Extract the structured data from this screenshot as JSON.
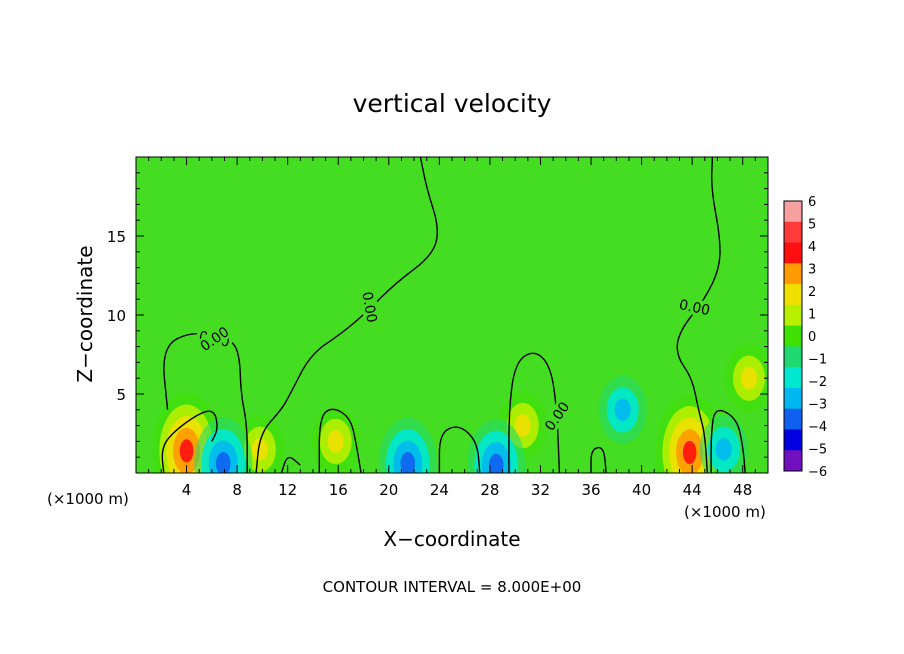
{
  "chart_data": {
    "type": "heatmap",
    "title": "vertical velocity",
    "xlabel": "X−coordinate",
    "ylabel": "Z−coordinate",
    "x_unit_left": "(×1000 m)",
    "x_unit_right": "(×1000 m)",
    "footer": "CONTOUR INTERVAL = 8.000E+00",
    "xlim": [
      0,
      50
    ],
    "ylim": [
      0,
      20
    ],
    "x_ticks": [
      4,
      8,
      12,
      16,
      20,
      24,
      28,
      32,
      36,
      40,
      44,
      48
    ],
    "x_tick_labels": [
      "4",
      "8",
      "12",
      "16",
      "20",
      "24",
      "28",
      "32",
      "36",
      "40",
      "44",
      "48"
    ],
    "y_ticks": [
      5,
      10,
      15
    ],
    "y_tick_labels": [
      "5",
      "10",
      "15"
    ],
    "colorbar": {
      "levels": [
        6,
        5,
        4,
        3,
        2,
        1,
        0,
        -1,
        -2,
        -3,
        -4,
        -5,
        -6
      ],
      "labels": [
        "6",
        "5",
        "4",
        "3",
        "2",
        "1",
        "0",
        "−1",
        "−2",
        "−3",
        "−4",
        "−5",
        "−6"
      ],
      "colors": [
        "#f6a0a0",
        "#ff3a3a",
        "#ff1010",
        "#ff9a00",
        "#f0e000",
        "#b8f000",
        "#40e000",
        "#20d870",
        "#00e8d0",
        "#00b8f0",
        "#1060f0",
        "#0000e0",
        "#7010c0"
      ]
    },
    "background_value": 0.3,
    "background_color": "#44dd22",
    "features": [
      {
        "x": 4.0,
        "z": 1.4,
        "value": 4.0
      },
      {
        "x": 43.8,
        "z": 1.3,
        "value": 3.5
      },
      {
        "x": 15.8,
        "z": 2.0,
        "value": 1.5
      },
      {
        "x": 30.6,
        "z": 3.0,
        "value": 1.5
      },
      {
        "x": 9.8,
        "z": 1.5,
        "value": 1.2
      },
      {
        "x": 6.9,
        "z": 0.6,
        "value": -3.0
      },
      {
        "x": 28.5,
        "z": 0.5,
        "value": -3.0
      },
      {
        "x": 21.5,
        "z": 0.6,
        "value": -2.5
      },
      {
        "x": 46.5,
        "z": 1.5,
        "value": -2.0
      },
      {
        "x": 38.5,
        "z": 4.0,
        "value": -1.2
      },
      {
        "x": 48.5,
        "z": 6.0,
        "value": 1.2
      }
    ],
    "contours": [
      {
        "level": 0.0,
        "label": "0.00",
        "label_at": [
          6.2,
          8.5
        ],
        "points": [
          [
            2.2,
            0
          ],
          [
            2.0,
            1.5
          ],
          [
            2.8,
            2.5
          ],
          [
            5.0,
            3.8
          ],
          [
            6.2,
            4.0
          ],
          [
            6.5,
            2.8
          ],
          [
            6.0,
            2.0
          ]
        ]
      },
      {
        "level": 0.0,
        "label": "0.00",
        "label_at": [
          6.2,
          8.5
        ],
        "points": [
          [
            2.5,
            4.0
          ],
          [
            2.0,
            8.0
          ],
          [
            4.5,
            9.0
          ],
          [
            7.5,
            8.5
          ],
          [
            8.2,
            7.5
          ],
          [
            8.3,
            5.0
          ],
          [
            8.8,
            3.0
          ],
          [
            8.8,
            0
          ]
        ]
      },
      {
        "level": 0.0,
        "label": "0.00",
        "label_at": [
          18.5,
          10.5
        ],
        "points": [
          [
            9.5,
            0
          ],
          [
            9.8,
            2.5
          ],
          [
            11.5,
            4.0
          ],
          [
            12.2,
            5.0
          ],
          [
            13.8,
            7.5
          ],
          [
            16.2,
            8.8
          ],
          [
            18.0,
            10.0
          ],
          [
            20.5,
            12.0
          ],
          [
            23.5,
            13.8
          ],
          [
            24.0,
            15.5
          ],
          [
            23.0,
            18.0
          ],
          [
            22.5,
            20.0
          ]
        ]
      },
      {
        "level": 0.0,
        "label": "0.00",
        "label_at": [
          33.3,
          3.6
        ],
        "points": [
          [
            29.5,
            0
          ],
          [
            29.5,
            4.0
          ],
          [
            30.0,
            7.0
          ],
          [
            31.5,
            7.8
          ],
          [
            32.8,
            6.8
          ],
          [
            33.3,
            4.0
          ],
          [
            33.5,
            0
          ]
        ]
      },
      {
        "level": 0.0,
        "label": "0.00",
        "label_at": [
          44.2,
          10.5
        ],
        "points": [
          [
            45.2,
            0
          ],
          [
            45.0,
            2.5
          ],
          [
            44.5,
            4.0
          ],
          [
            44.0,
            6.0
          ],
          [
            42.7,
            7.5
          ],
          [
            43.0,
            9.0
          ],
          [
            45.0,
            11.0
          ],
          [
            46.2,
            13.0
          ],
          [
            46.2,
            15.0
          ],
          [
            45.5,
            18.0
          ],
          [
            45.6,
            20.0
          ]
        ]
      },
      {
        "level": 0.0,
        "label": "",
        "label_at": null,
        "points": [
          [
            11.5,
            0
          ],
          [
            12.0,
            1.2
          ],
          [
            13.0,
            0.5
          ]
        ]
      },
      {
        "level": 0.0,
        "label": "",
        "label_at": null,
        "points": [
          [
            14.5,
            0
          ],
          [
            14.5,
            3.5
          ],
          [
            15.5,
            4.2
          ],
          [
            17.0,
            3.5
          ],
          [
            17.5,
            1.5
          ],
          [
            17.8,
            0
          ]
        ]
      },
      {
        "level": 0.0,
        "label": "",
        "label_at": null,
        "points": [
          [
            24.0,
            0
          ],
          [
            24.0,
            2.5
          ],
          [
            25.5,
            3.1
          ],
          [
            27.0,
            2.0
          ],
          [
            27.2,
            0
          ]
        ]
      },
      {
        "level": 0.0,
        "label": "",
        "label_at": null,
        "points": [
          [
            36.0,
            0
          ],
          [
            36.0,
            1.5
          ],
          [
            37.0,
            1.7
          ],
          [
            37.2,
            0
          ]
        ]
      },
      {
        "level": 0.0,
        "label": "",
        "label_at": null,
        "points": [
          [
            45.5,
            0
          ],
          [
            45.5,
            2.5
          ],
          [
            45.8,
            4.2
          ],
          [
            47.5,
            3.5
          ],
          [
            48.0,
            1.8
          ],
          [
            48.2,
            0
          ]
        ]
      }
    ]
  }
}
